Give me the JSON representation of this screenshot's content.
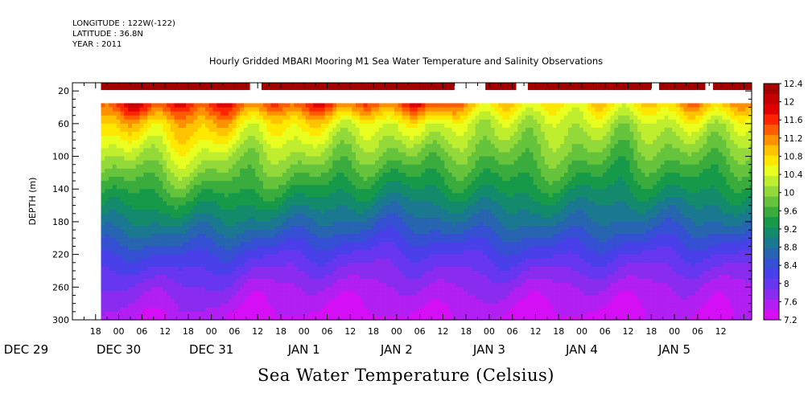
{
  "header": {
    "longitude": "LONGITUDE : 122W(-122)",
    "latitude": "LATITUDE : 36.8N",
    "year": "YEAR : 2011",
    "title": "Hourly Gridded MBARI Mooring M1 Sea Water Temperature and Salinity Observations"
  },
  "subtitle": "Sea Water Temperature (Celsius)",
  "chart_data": {
    "type": "heatmap",
    "title": "Hourly Gridded MBARI Mooring M1 Sea Water Temperature and Salinity Observations",
    "subtitle": "Sea Water Temperature (Celsius)",
    "ylabel": "DEPTH (m)",
    "xlabel": "",
    "y_axis": {
      "range": [
        10,
        300
      ],
      "inverted": true,
      "ticks": [
        20,
        60,
        100,
        140,
        180,
        220,
        260,
        300
      ]
    },
    "x_axis": {
      "units": "hours since DEC 29 00:00",
      "range": [
        12,
        164
      ],
      "hour_ticks": [
        {
          "h": 18,
          "label": "18"
        },
        {
          "h": 24,
          "label": "00"
        },
        {
          "h": 30,
          "label": "06"
        },
        {
          "h": 36,
          "label": "12"
        },
        {
          "h": 42,
          "label": "18"
        },
        {
          "h": 48,
          "label": "00"
        },
        {
          "h": 54,
          "label": "06"
        },
        {
          "h": 60,
          "label": "12"
        },
        {
          "h": 66,
          "label": "18"
        },
        {
          "h": 72,
          "label": "00"
        },
        {
          "h": 78,
          "label": "06"
        },
        {
          "h": 84,
          "label": "12"
        },
        {
          "h": 90,
          "label": "18"
        },
        {
          "h": 96,
          "label": "00"
        },
        {
          "h": 102,
          "label": "06"
        },
        {
          "h": 108,
          "label": "12"
        },
        {
          "h": 114,
          "label": "18"
        },
        {
          "h": 120,
          "label": "00"
        },
        {
          "h": 126,
          "label": "06"
        },
        {
          "h": 132,
          "label": "12"
        },
        {
          "h": 138,
          "label": "18"
        },
        {
          "h": 144,
          "label": "00"
        },
        {
          "h": 150,
          "label": "06"
        },
        {
          "h": 156,
          "label": "12"
        },
        {
          "h": 162,
          "label": "18"
        },
        {
          "h": 168,
          "label": "00"
        },
        {
          "h": 174,
          "label": "06"
        },
        {
          "h": 180,
          "label": "12"
        }
      ],
      "day_labels": [
        {
          "h": 0,
          "label": "DEC 29"
        },
        {
          "h": 24,
          "label": "DEC 30"
        },
        {
          "h": 48,
          "label": "DEC 31"
        },
        {
          "h": 72,
          "label": "JAN  1"
        },
        {
          "h": 96,
          "label": "JAN  2"
        },
        {
          "h": 120,
          "label": "JAN  3"
        },
        {
          "h": 144,
          "label": "JAN  4"
        },
        {
          "h": 168,
          "label": "JAN  5"
        }
      ]
    },
    "x_axis_scale_note_hours": [
      12,
      188
    ],
    "data_start_hour": 19.4,
    "data_end_hour": 188,
    "surface_depth": 14,
    "surface_value": 12.3,
    "surface_gaps": [
      [
        58,
        61
      ],
      [
        111,
        119
      ],
      [
        127,
        130
      ],
      [
        162,
        164
      ],
      [
        176,
        178
      ]
    ],
    "profile_top_depth": 35,
    "colorbar": {
      "levels": [
        12.4,
        12,
        11.6,
        11.2,
        10.8,
        10.4,
        10,
        9.6,
        9.2,
        8.8,
        8.4,
        8,
        7.6,
        7.2
      ],
      "colors": [
        "#a30000",
        "#c50000",
        "#e00000",
        "#ff2400",
        "#ff5c00",
        "#ff9100",
        "#ffc300",
        "#ffe800",
        "#e9ff1f",
        "#bfee2e",
        "#93d93a",
        "#66c43c",
        "#3aac3e",
        "#169a4a",
        "#138a6c",
        "#1a7990",
        "#2765b0",
        "#3550d3",
        "#4a40ea",
        "#6636f0",
        "#8a2cf0",
        "#b21ff2",
        "#d50ff5"
      ],
      "min": 7.2,
      "max": 12.4
    },
    "profile_keyframes": [
      {
        "hour": 19.4,
        "depths": [
          35,
          60,
          100,
          140,
          180,
          220,
          260,
          300
        ],
        "values": [
          11.5,
          10.9,
          10.2,
          9.6,
          9.0,
          8.4,
          7.9,
          7.5
        ]
      },
      {
        "hour": 30,
        "depths": [
          35,
          60,
          100,
          140,
          180,
          220,
          260,
          300
        ],
        "values": [
          11.8,
          10.8,
          10.1,
          9.5,
          9.0,
          8.3,
          7.7,
          7.4
        ]
      },
      {
        "hour": 40,
        "depths": [
          35,
          60,
          100,
          140,
          180,
          220,
          260,
          300
        ],
        "values": [
          11.7,
          11.0,
          10.4,
          9.7,
          9.0,
          8.4,
          7.9,
          7.5
        ]
      },
      {
        "hour": 50,
        "depths": [
          35,
          60,
          100,
          140,
          180,
          220,
          260,
          300
        ],
        "values": [
          11.6,
          10.9,
          10.2,
          9.6,
          9.0,
          8.3,
          7.8,
          7.4
        ]
      },
      {
        "hour": 60,
        "depths": [
          35,
          60,
          100,
          140,
          180,
          220,
          260,
          300
        ],
        "values": [
          11.4,
          10.6,
          10.0,
          9.5,
          8.9,
          8.2,
          7.6,
          7.3
        ]
      },
      {
        "hour": 72,
        "depths": [
          35,
          60,
          100,
          140,
          180,
          220,
          260,
          300
        ],
        "values": [
          11.6,
          10.7,
          10.1,
          9.5,
          8.8,
          8.1,
          7.6,
          7.3
        ]
      },
      {
        "hour": 84,
        "depths": [
          35,
          60,
          100,
          140,
          180,
          220,
          260,
          300
        ],
        "values": [
          11.5,
          10.5,
          9.9,
          9.3,
          8.7,
          8.1,
          7.6,
          7.3
        ]
      },
      {
        "hour": 96,
        "depths": [
          35,
          60,
          100,
          140,
          180,
          220,
          260,
          300
        ],
        "values": [
          11.4,
          10.4,
          9.8,
          9.2,
          8.6,
          8.0,
          7.6,
          7.3
        ]
      },
      {
        "hour": 108,
        "depths": [
          35,
          60,
          100,
          140,
          180,
          220,
          260,
          300
        ],
        "values": [
          11.8,
          10.6,
          9.9,
          9.3,
          8.7,
          8.1,
          7.7,
          7.4
        ]
      },
      {
        "hour": 120,
        "depths": [
          35,
          60,
          100,
          140,
          180,
          220,
          260,
          300
        ],
        "values": [
          10.6,
          10.1,
          9.7,
          9.3,
          8.8,
          8.2,
          7.7,
          7.4
        ]
      },
      {
        "hour": 132,
        "depths": [
          35,
          60,
          100,
          140,
          180,
          220,
          260,
          300
        ],
        "values": [
          10.8,
          10.3,
          9.9,
          9.4,
          8.8,
          8.2,
          7.6,
          7.3
        ]
      },
      {
        "hour": 144,
        "depths": [
          35,
          60,
          100,
          140,
          180,
          220,
          260,
          300
        ],
        "values": [
          10.6,
          10.2,
          9.8,
          9.3,
          8.8,
          8.2,
          7.6,
          7.3
        ]
      },
      {
        "hour": 156,
        "depths": [
          35,
          60,
          100,
          140,
          180,
          220,
          260,
          300
        ],
        "values": [
          10.7,
          10.2,
          9.7,
          9.2,
          8.7,
          8.1,
          7.6,
          7.3
        ]
      },
      {
        "hour": 168,
        "depths": [
          35,
          60,
          100,
          140,
          180,
          220,
          260,
          300
        ],
        "values": [
          11.0,
          10.3,
          9.8,
          9.3,
          8.7,
          8.1,
          7.6,
          7.4
        ]
      },
      {
        "hour": 188,
        "depths": [
          35,
          60,
          100,
          140,
          180,
          220,
          260,
          300
        ],
        "values": [
          11.2,
          10.4,
          9.8,
          9.3,
          8.8,
          8.1,
          7.6,
          7.4
        ]
      }
    ]
  }
}
